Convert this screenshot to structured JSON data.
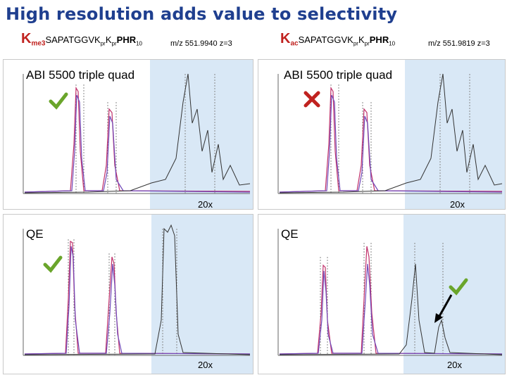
{
  "slide": {
    "title": "High resolution adds value to selectivity"
  },
  "left_header": {
    "big_letter": "K",
    "big_sub": "me3",
    "peptide_a": "SAPATGGVK",
    "pr1": "pr",
    "k2": "K",
    "pr2": "pr",
    "tail": "PHR",
    "tail_sub": "10",
    "mz": "m/z 551.9940 z=3"
  },
  "right_header": {
    "big_letter": "K",
    "big_sub": "ac",
    "peptide_a": "SAPATGGVK",
    "pr1": "pr",
    "k2": "K",
    "pr2": "pr",
    "tail": "PHR",
    "tail_sub": "10",
    "mz": "m/z 551.9819 z=3"
  },
  "panels": {
    "top_left": {
      "instrument": "ABI 5500 triple quad",
      "zoom": "20x",
      "verdict": "check"
    },
    "top_right": {
      "instrument": "ABI 5500 triple quad",
      "zoom": "20x",
      "verdict": "cross"
    },
    "bottom_left": {
      "instrument": "QE",
      "zoom": "20x",
      "verdict": "check"
    },
    "bottom_right": {
      "instrument": "QE",
      "zoom": "20x",
      "verdict": "check"
    }
  },
  "colors": {
    "title": "#1f3f8f",
    "highlight": "#d9e8f6",
    "check": "#6aa52b",
    "cross": "#c0221f"
  }
}
